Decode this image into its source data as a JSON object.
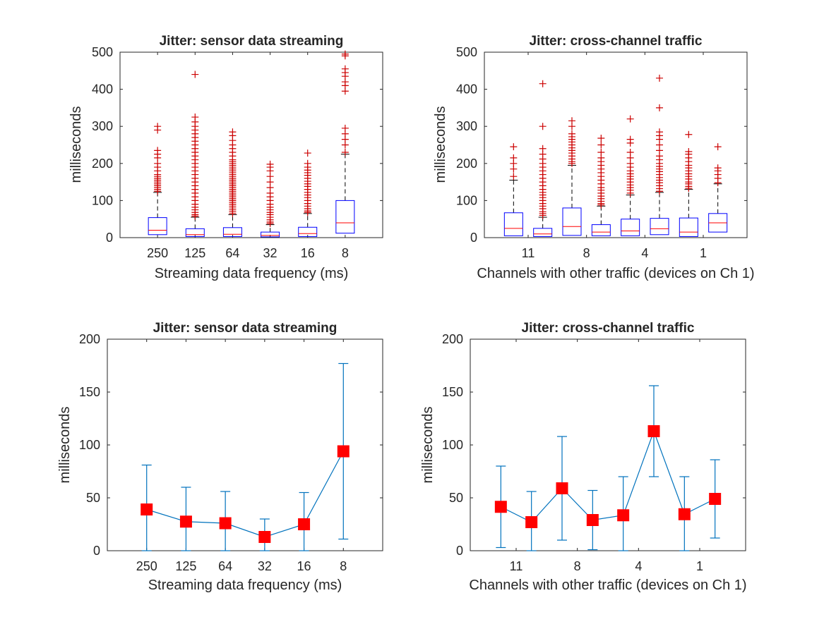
{
  "colors": {
    "box": "#0000ff",
    "median": "#ff0000",
    "outlier": "#cc0000",
    "errorbar": "#0072bd",
    "marker": "#ff0000",
    "axis": "#262626"
  },
  "chart_data": [
    {
      "type": "box",
      "title": "Jitter: sensor data streaming",
      "xlabel": "Streaming data frequency (ms)",
      "ylabel": "milliseconds",
      "ylim": [
        0,
        500
      ],
      "yticks": [
        "0",
        "100",
        "200",
        "300",
        "400",
        "500"
      ],
      "categories": [
        "250",
        "125",
        "64",
        "32",
        "16",
        "8"
      ],
      "boxes": [
        {
          "q1": 8,
          "median": 20,
          "q3": 54,
          "whisker_low": 0,
          "whisker_high": 122,
          "outliers": [
            125,
            130,
            135,
            140,
            145,
            150,
            155,
            160,
            165,
            170,
            180,
            190,
            200,
            215,
            225,
            235,
            290,
            300
          ]
        },
        {
          "q1": 3,
          "median": 8,
          "q3": 24,
          "whisker_low": 0,
          "whisker_high": 55,
          "outliers": [
            58,
            62,
            68,
            75,
            82,
            90,
            100,
            110,
            120,
            130,
            140,
            150,
            160,
            170,
            180,
            190,
            200,
            210,
            220,
            230,
            240,
            250,
            260,
            270,
            280,
            290,
            300,
            312,
            325,
            440
          ]
        },
        {
          "q1": 3,
          "median": 9,
          "q3": 27,
          "whisker_low": 0,
          "whisker_high": 62,
          "outliers": [
            65,
            70,
            75,
            80,
            85,
            90,
            95,
            100,
            105,
            110,
            115,
            120,
            125,
            130,
            135,
            140,
            145,
            150,
            155,
            160,
            165,
            170,
            175,
            180,
            185,
            190,
            195,
            200,
            205,
            210,
            220,
            230,
            240,
            250,
            262,
            275,
            285
          ]
        },
        {
          "q1": 2,
          "median": 6,
          "q3": 15,
          "whisker_low": 0,
          "whisker_high": 35,
          "outliers": [
            38,
            42,
            48,
            55,
            62,
            68,
            75,
            82,
            90,
            100,
            110,
            120,
            135,
            150,
            165,
            180,
            190,
            198
          ]
        },
        {
          "q1": 3,
          "median": 11,
          "q3": 28,
          "whisker_low": 0,
          "whisker_high": 65,
          "outliers": [
            68,
            72,
            78,
            85,
            92,
            100,
            108,
            115,
            122,
            130,
            138,
            145,
            152,
            160,
            168,
            175,
            182,
            190,
            200,
            228
          ]
        },
        {
          "q1": 12,
          "median": 40,
          "q3": 100,
          "whisker_low": 0,
          "whisker_high": 225,
          "outliers": [
            230,
            250,
            265,
            280,
            295,
            395,
            410,
            420,
            435,
            445,
            455,
            490,
            495
          ]
        }
      ]
    },
    {
      "type": "box",
      "title": "Jitter: cross-channel traffic",
      "xlabel": "Channels with other traffic (devices on Ch 1)",
      "ylabel": "milliseconds",
      "ylim": [
        0,
        500
      ],
      "yticks": [
        "0",
        "100",
        "200",
        "300",
        "400",
        "500"
      ],
      "xtick_labels": [
        "11",
        "8",
        "4",
        "1"
      ],
      "boxes": [
        {
          "q1": 5,
          "median": 25,
          "q3": 67,
          "whisker_low": 0,
          "whisker_high": 155,
          "outliers": [
            165,
            185,
            200,
            215,
            245
          ]
        },
        {
          "q1": 3,
          "median": 10,
          "q3": 25,
          "whisker_low": 0,
          "whisker_high": 55,
          "outliers": [
            60,
            65,
            70,
            78,
            85,
            92,
            100,
            108,
            115,
            122,
            130,
            140,
            150,
            160,
            170,
            180,
            190,
            200,
            212,
            225,
            240,
            300,
            415
          ]
        },
        {
          "q1": 6,
          "median": 30,
          "q3": 80,
          "whisker_low": 0,
          "whisker_high": 195,
          "outliers": [
            200,
            205,
            212,
            220,
            228,
            235,
            242,
            250,
            258,
            265,
            272,
            280,
            300,
            315
          ]
        },
        {
          "q1": 5,
          "median": 15,
          "q3": 35,
          "whisker_low": 0,
          "whisker_high": 85,
          "outliers": [
            88,
            92,
            98,
            105,
            112,
            120,
            128,
            135,
            145,
            155,
            165,
            175,
            185,
            195,
            205,
            215,
            230,
            250,
            268
          ]
        },
        {
          "q1": 5,
          "median": 18,
          "q3": 50,
          "whisker_low": 0,
          "whisker_high": 115,
          "outliers": [
            120,
            128,
            135,
            142,
            150,
            158,
            165,
            172,
            180,
            190,
            200,
            215,
            230,
            255,
            265,
            320
          ]
        },
        {
          "q1": 8,
          "median": 24,
          "q3": 52,
          "whisker_low": 0,
          "whisker_high": 122,
          "outliers": [
            125,
            132,
            140,
            148,
            155,
            162,
            170,
            178,
            185,
            192,
            200,
            210,
            220,
            235,
            250,
            265,
            275,
            285,
            350,
            430
          ]
        },
        {
          "q1": 3,
          "median": 15,
          "q3": 53,
          "whisker_low": 0,
          "whisker_high": 130,
          "outliers": [
            133,
            138,
            145,
            150,
            158,
            165,
            172,
            180,
            188,
            195,
            205,
            215,
            225,
            232,
            278
          ]
        },
        {
          "q1": 15,
          "median": 40,
          "q3": 65,
          "whisker_low": 0,
          "whisker_high": 145,
          "outliers": [
            148,
            160,
            170,
            180,
            188,
            245
          ]
        }
      ]
    },
    {
      "type": "line",
      "title": "Jitter: sensor data streaming",
      "xlabel": "Streaming data frequency (ms)",
      "ylabel": "milliseconds",
      "ylim": [
        0,
        200
      ],
      "yticks": [
        "0",
        "50",
        "100",
        "150",
        "200"
      ],
      "categories": [
        "250",
        "125",
        "64",
        "32",
        "16",
        "8"
      ],
      "values": [
        39,
        27.5,
        26,
        13,
        25,
        94
      ],
      "err_low": [
        0,
        0,
        0,
        0,
        0,
        11
      ],
      "err_high": [
        81,
        60,
        56,
        30,
        55,
        177
      ]
    },
    {
      "type": "line",
      "title": "Jitter: cross-channel traffic",
      "xlabel": "Channels with other traffic (devices on Ch 1)",
      "ylabel": "milliseconds",
      "ylim": [
        0,
        200
      ],
      "yticks": [
        "0",
        "50",
        "100",
        "150",
        "200"
      ],
      "xtick_labels": [
        "11",
        "8",
        "4",
        "1"
      ],
      "values": [
        41.5,
        27,
        59,
        29,
        33.5,
        113,
        34.5,
        49
      ],
      "err_low": [
        3,
        0,
        10,
        1,
        0,
        70,
        0,
        12
      ],
      "err_high": [
        80,
        56,
        108,
        57,
        70,
        156,
        70,
        86
      ]
    }
  ]
}
